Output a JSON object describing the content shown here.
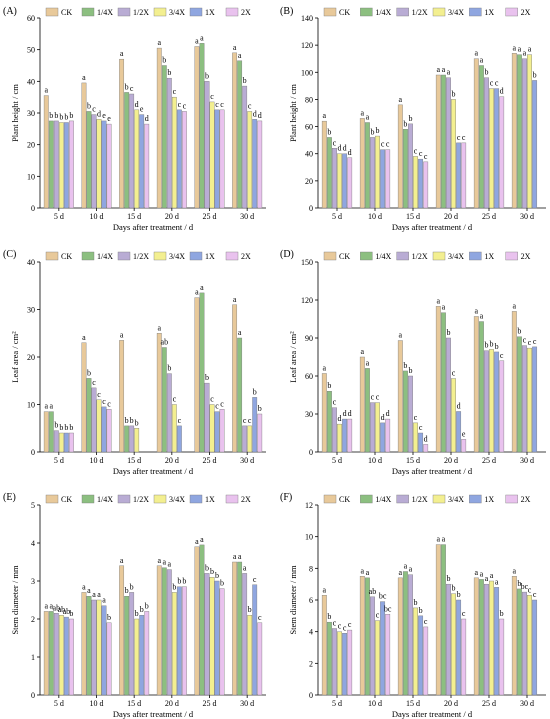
{
  "legend": [
    "CK",
    "1/4X",
    "1/2X",
    "3/4X",
    "1X",
    "2X"
  ],
  "colors": [
    "#e8c99a",
    "#8cbf80",
    "#b9acd4",
    "#f3ef90",
    "#8fa6e0",
    "#e9c2ee"
  ],
  "chart_data": [
    {
      "type": "bar",
      "panel": "(A)",
      "ylabel": "Plant height / cm",
      "xlabel": "Days after treatment / d",
      "categories": [
        "5 d",
        "10 d",
        "15 d",
        "20 d",
        "25 d",
        "30 d"
      ],
      "ylim": [
        0,
        60
      ],
      "yticks": [
        0,
        10,
        20,
        30,
        40,
        50,
        60
      ],
      "series": [
        {
          "name": "CK",
          "values": [
            35.5,
            39.5,
            47.0,
            50.5,
            51.0,
            49.0
          ],
          "letters": [
            "a",
            "a",
            "a",
            "a",
            "a",
            "a"
          ]
        },
        {
          "name": "1/4X",
          "values": [
            27.5,
            30.5,
            36.5,
            45.0,
            52.0,
            46.5
          ],
          "letters": [
            "b",
            "b",
            "b",
            "b",
            "a",
            "a"
          ]
        },
        {
          "name": "1/2X",
          "values": [
            27.5,
            29.5,
            36.0,
            41.0,
            40.0,
            38.5
          ],
          "letters": [
            "b",
            "c",
            "c",
            "b",
            "b",
            "b"
          ]
        },
        {
          "name": "3/4X",
          "values": [
            27.0,
            28.0,
            31.0,
            35.0,
            33.5,
            30.5
          ],
          "letters": [
            "b",
            "d",
            "d",
            "c",
            "c",
            "c"
          ]
        },
        {
          "name": "1X",
          "values": [
            27.0,
            27.5,
            29.5,
            31.0,
            31.0,
            28.0
          ],
          "letters": [
            "b",
            "e",
            "e",
            "c",
            "c",
            "d"
          ]
        },
        {
          "name": "2X",
          "values": [
            27.5,
            26.5,
            26.5,
            30.5,
            31.0,
            27.5
          ],
          "letters": [
            "b",
            "e",
            "d",
            "c",
            "c",
            "d"
          ]
        }
      ]
    },
    {
      "type": "bar",
      "panel": "(B)",
      "ylabel": "Plant height / cm",
      "xlabel": "Days after treatment / d",
      "categories": [
        "5 d",
        "10 d",
        "15 d",
        "20 d",
        "25 d",
        "30 d"
      ],
      "ylim": [
        0,
        140
      ],
      "yticks": [
        0,
        20,
        40,
        60,
        80,
        100,
        120,
        140
      ],
      "series": [
        {
          "name": "CK",
          "values": [
            64,
            66,
            76,
            98,
            110,
            114
          ],
          "letters": [
            "a",
            "a",
            "a",
            "a",
            "a",
            "a"
          ]
        },
        {
          "name": "1/4X",
          "values": [
            52,
            63,
            58,
            98,
            105,
            113
          ],
          "letters": [
            "b",
            "a",
            "b",
            "a",
            "a",
            "a"
          ]
        },
        {
          "name": "1/2X",
          "values": [
            44,
            52,
            62,
            96,
            96,
            110
          ],
          "letters": [
            "c",
            "b",
            "b",
            "a",
            "b",
            "a"
          ]
        },
        {
          "name": "3/4X",
          "values": [
            40,
            53,
            38,
            80,
            88,
            113
          ],
          "letters": [
            "d",
            "b",
            "c",
            "b",
            "c",
            "a"
          ]
        },
        {
          "name": "1X",
          "values": [
            40,
            43,
            36,
            48,
            88,
            94
          ],
          "letters": [
            "d",
            "c",
            "c",
            "c",
            "c",
            "b"
          ]
        },
        {
          "name": "2X",
          "values": [
            37,
            43,
            34,
            48,
            82,
            0
          ],
          "letters": [
            "d",
            "c",
            "c",
            "c",
            "d",
            ""
          ]
        }
      ]
    },
    {
      "type": "bar",
      "panel": "(C)",
      "ylabel": "Leaf area / cm²",
      "xlabel": "Days after treatment / d",
      "categories": [
        "5 d",
        "10 d",
        "15 d",
        "20 d",
        "25 d",
        "30 d"
      ],
      "ylim": [
        0,
        40
      ],
      "yticks": [
        0,
        10,
        20,
        30,
        40
      ],
      "series": [
        {
          "name": "CK",
          "values": [
            8.5,
            23.0,
            23.5,
            25.0,
            32.5,
            31.0
          ],
          "letters": [
            "a",
            "a",
            "a",
            "a",
            "a",
            "a"
          ]
        },
        {
          "name": "1/4X",
          "values": [
            8.5,
            15.5,
            5.5,
            22.0,
            33.5,
            24.0
          ],
          "letters": [
            "a",
            "b",
            "b",
            "ab",
            "a",
            "a"
          ]
        },
        {
          "name": "1/2X",
          "values": [
            4.5,
            13.5,
            5.5,
            16.5,
            14.5,
            5.5
          ],
          "letters": [
            "b",
            "c",
            "b",
            "b",
            "b",
            "c"
          ]
        },
        {
          "name": "3/4X",
          "values": [
            4.0,
            11.0,
            5.0,
            10.0,
            10.0,
            5.5
          ],
          "letters": [
            "b",
            "c",
            "b",
            "c",
            "c",
            "c"
          ]
        },
        {
          "name": "1X",
          "values": [
            4.0,
            9.5,
            0,
            5.5,
            8.5,
            11.5
          ],
          "letters": [
            "b",
            "c",
            "",
            "c",
            "c",
            "b"
          ]
        },
        {
          "name": "2X",
          "values": [
            4.0,
            9.0,
            0,
            0,
            9.0,
            8.0
          ],
          "letters": [
            "b",
            "c",
            "",
            "",
            "c",
            "b"
          ]
        }
      ]
    },
    {
      "type": "bar",
      "panel": "(D)",
      "ylabel": "Leaf area / cm²",
      "xlabel": "Days after treatment / d",
      "categories": [
        "5 d",
        "10 d",
        "15 d",
        "20 d",
        "25 d",
        "30 d"
      ],
      "ylim": [
        0,
        150
      ],
      "yticks": [
        0,
        30,
        60,
        90,
        120,
        150
      ],
      "series": [
        {
          "name": "CK",
          "values": [
            62,
            75,
            88,
            115,
            107,
            111
          ],
          "letters": [
            "a",
            "a",
            "a",
            "a",
            "a",
            "a"
          ]
        },
        {
          "name": "1/4X",
          "values": [
            48,
            66,
            64,
            110,
            103,
            91
          ],
          "letters": [
            "b",
            "a",
            "b",
            "a",
            "a",
            "b"
          ]
        },
        {
          "name": "1/2X",
          "values": [
            35,
            39,
            60,
            90,
            80,
            84
          ],
          "letters": [
            "c",
            "c",
            "b",
            "b",
            "b",
            "c"
          ]
        },
        {
          "name": "3/4X",
          "values": [
            22,
            39,
            23,
            58,
            81,
            82
          ],
          "letters": [
            "d",
            "c",
            "c",
            "c",
            "b",
            "c"
          ]
        },
        {
          "name": "1X",
          "values": [
            26,
            23,
            15,
            32,
            79,
            83
          ],
          "letters": [
            "d",
            "d",
            "c",
            "d",
            "b",
            "c"
          ]
        },
        {
          "name": "2X",
          "values": [
            26,
            26,
            6,
            10,
            72,
            0
          ],
          "letters": [
            "d",
            "d",
            "d",
            "e",
            "c",
            ""
          ]
        }
      ]
    },
    {
      "type": "bar",
      "panel": "(E)",
      "ylabel": "Stem diameter / mm",
      "xlabel": "Days after treatment / d",
      "categories": [
        "5 d",
        "10 d",
        "15 d",
        "20 d",
        "25 d",
        "30 d"
      ],
      "ylim": [
        0,
        5
      ],
      "yticks": [
        0,
        1,
        2,
        3,
        4,
        5
      ],
      "series": [
        {
          "name": "CK",
          "values": [
            2.2,
            2.7,
            3.4,
            3.4,
            3.9,
            3.5
          ],
          "letters": [
            "a",
            "a",
            "a",
            "a",
            "a",
            "a"
          ]
        },
        {
          "name": "1/4X",
          "values": [
            2.2,
            2.6,
            2.6,
            3.35,
            3.95,
            3.5
          ],
          "letters": [
            "a",
            "a",
            "b",
            "a",
            "a",
            "a"
          ]
        },
        {
          "name": "1/2X",
          "values": [
            2.15,
            2.5,
            2.7,
            3.3,
            3.2,
            3.2
          ],
          "letters": [
            "ab",
            "a",
            "b",
            "a",
            "b",
            "a"
          ]
        },
        {
          "name": "3/4X",
          "values": [
            2.1,
            2.5,
            2.0,
            2.7,
            3.1,
            2.1
          ],
          "letters": [
            "ab",
            "a",
            "b",
            "b",
            "b",
            "b"
          ]
        },
        {
          "name": "1X",
          "values": [
            2.05,
            2.35,
            2.1,
            2.85,
            3.0,
            2.9
          ],
          "letters": [
            "ab",
            "a",
            "b",
            "b",
            "b",
            "c"
          ]
        },
        {
          "name": "2X",
          "values": [
            2.0,
            1.9,
            2.2,
            2.85,
            2.8,
            1.9
          ],
          "letters": [
            "b",
            "b",
            "b",
            "b",
            "b",
            "c"
          ]
        }
      ]
    },
    {
      "type": "bar",
      "panel": "(F)",
      "ylabel": "Stem diameter / mm",
      "xlabel": "Days after treatment / d",
      "categories": [
        "5 d",
        "10 d",
        "15 d",
        "20 d",
        "25 d",
        "30 d"
      ],
      "ylim": [
        0,
        12
      ],
      "yticks": [
        0,
        2,
        4,
        6,
        8,
        10,
        12
      ],
      "series": [
        {
          "name": "CK",
          "values": [
            6.3,
            7.5,
            7.4,
            9.5,
            7.4,
            7.5
          ],
          "letters": [
            "a",
            "a",
            "a",
            "a",
            "a",
            "a"
          ]
        },
        {
          "name": "1/4X",
          "values": [
            4.6,
            7.4,
            7.8,
            9.5,
            7.3,
            6.7
          ],
          "letters": [
            "b",
            "a",
            "a",
            "a",
            "a",
            "b"
          ]
        },
        {
          "name": "1/2X",
          "values": [
            4.2,
            6.2,
            7.6,
            7.0,
            7.0,
            6.5
          ],
          "letters": [
            "c",
            "ab",
            "a",
            "b",
            "a",
            "bc"
          ]
        },
        {
          "name": "3/4X",
          "values": [
            4.0,
            4.7,
            5.5,
            6.4,
            7.2,
            6.3
          ],
          "letters": [
            "c",
            "c",
            "b",
            "b",
            "a",
            "c"
          ]
        },
        {
          "name": "1X",
          "values": [
            3.9,
            5.9,
            5.0,
            6.0,
            6.8,
            6.0
          ],
          "letters": [
            "c",
            "bc",
            "b",
            "b",
            "a",
            "c"
          ]
        },
        {
          "name": "2X",
          "values": [
            4.1,
            5.1,
            4.3,
            4.8,
            4.8,
            0
          ],
          "letters": [
            "c",
            "bc",
            "c",
            "c",
            "b",
            ""
          ]
        }
      ]
    }
  ]
}
